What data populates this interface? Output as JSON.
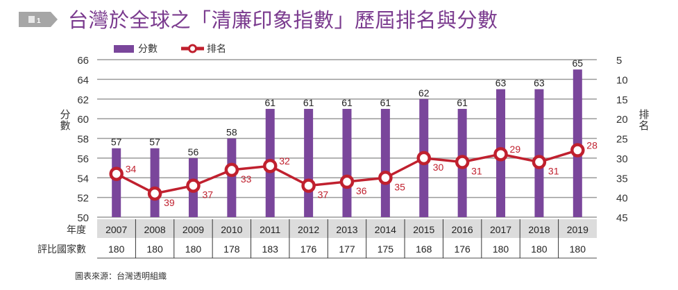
{
  "figure": {
    "badge": "圖1",
    "title": "台灣於全球之「清廉印象指數」歷屆排名與分數",
    "source": "圖表來源：台灣透明組織"
  },
  "chart_data": {
    "type": "bar+line",
    "title": "台灣於全球之「清廉印象指數」歷屆排名與分數",
    "categories": [
      "2007",
      "2008",
      "2009",
      "2010",
      "2011",
      "2012",
      "2013",
      "2014",
      "2015",
      "2016",
      "2017",
      "2018",
      "2019"
    ],
    "series": [
      {
        "name": "分數",
        "type": "bar",
        "axis": "left",
        "color": "#7a469b",
        "values": [
          57,
          57,
          56,
          58,
          61,
          61,
          61,
          61,
          62,
          61,
          63,
          63,
          65
        ]
      },
      {
        "name": "排名",
        "type": "line",
        "axis": "right",
        "color": "#c0202e",
        "values": [
          34,
          39,
          37,
          33,
          32,
          37,
          36,
          35,
          30,
          31,
          29,
          31,
          28
        ]
      }
    ],
    "ylabel": "分數",
    "y2label": "排名",
    "ylim": [
      50,
      66
    ],
    "yticks": [
      "50",
      "52",
      "54",
      "56",
      "58",
      "60",
      "62",
      "64",
      "66"
    ],
    "y2lim": [
      5,
      45
    ],
    "y2ticks": [
      "5",
      "10",
      "15",
      "20",
      "25",
      "30",
      "35",
      "40",
      "45"
    ],
    "y2_inverted": true,
    "grid": true,
    "legend_position": "top-left",
    "table": {
      "row_labels": [
        "年度",
        "評比國家數"
      ],
      "countries": [
        "180",
        "180",
        "180",
        "178",
        "183",
        "176",
        "177",
        "175",
        "168",
        "176",
        "180",
        "180",
        "180"
      ]
    }
  }
}
